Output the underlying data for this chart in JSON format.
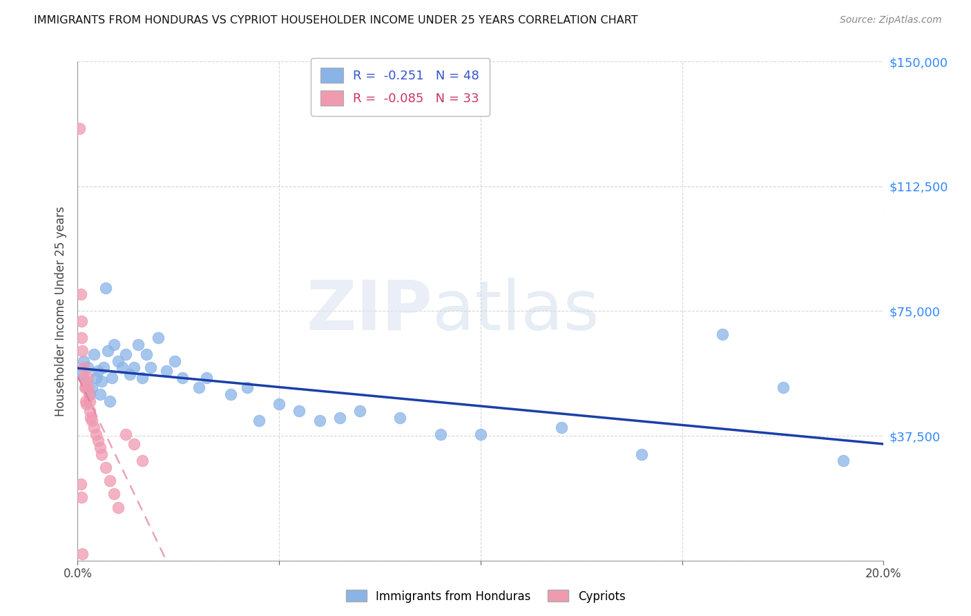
{
  "title": "IMMIGRANTS FROM HONDURAS VS CYPRIOT HOUSEHOLDER INCOME UNDER 25 YEARS CORRELATION CHART",
  "source": "Source: ZipAtlas.com",
  "ylabel": "Householder Income Under 25 years",
  "xlim": [
    0.0,
    0.2
  ],
  "ylim": [
    0,
    150000
  ],
  "yticks": [
    0,
    37500,
    75000,
    112500,
    150000
  ],
  "ytick_labels": [
    "",
    "$37,500",
    "$75,000",
    "$112,500",
    "$150,000"
  ],
  "xticks": [
    0.0,
    0.05,
    0.1,
    0.15,
    0.2
  ],
  "xtick_labels": [
    "0.0%",
    "",
    "",
    "",
    "20.0%"
  ],
  "legend_labels_bottom": [
    "Immigrants from Honduras",
    "Cypriots"
  ],
  "blue_color": "#8ab4e8",
  "pink_color": "#f09ab0",
  "blue_line_color": "#1a3fa8",
  "pink_line_color": "#e07090",
  "grid_color": "#cccccc",
  "blue_R": -0.251,
  "blue_N": 48,
  "pink_R": -0.085,
  "pink_N": 33,
  "blue_scatter_x": [
    0.001,
    0.0015,
    0.002,
    0.0025,
    0.003,
    0.0035,
    0.004,
    0.0045,
    0.005,
    0.0055,
    0.006,
    0.0065,
    0.007,
    0.0075,
    0.008,
    0.0085,
    0.009,
    0.01,
    0.011,
    0.012,
    0.013,
    0.014,
    0.015,
    0.016,
    0.017,
    0.018,
    0.02,
    0.022,
    0.024,
    0.026,
    0.03,
    0.032,
    0.038,
    0.042,
    0.045,
    0.05,
    0.055,
    0.06,
    0.065,
    0.07,
    0.08,
    0.09,
    0.1,
    0.12,
    0.14,
    0.16,
    0.175,
    0.19
  ],
  "blue_scatter_y": [
    56000,
    60000,
    54000,
    58000,
    50000,
    52000,
    62000,
    55000,
    57000,
    50000,
    54000,
    58000,
    82000,
    63000,
    48000,
    55000,
    65000,
    60000,
    58000,
    62000,
    56000,
    58000,
    65000,
    55000,
    62000,
    58000,
    67000,
    57000,
    60000,
    55000,
    52000,
    55000,
    50000,
    52000,
    42000,
    47000,
    45000,
    42000,
    43000,
    45000,
    43000,
    38000,
    38000,
    40000,
    32000,
    68000,
    52000,
    30000
  ],
  "pink_scatter_x": [
    0.0005,
    0.0008,
    0.001,
    0.001,
    0.0012,
    0.0015,
    0.0015,
    0.0018,
    0.002,
    0.002,
    0.0022,
    0.0025,
    0.0025,
    0.0028,
    0.003,
    0.003,
    0.0032,
    0.0035,
    0.004,
    0.0045,
    0.005,
    0.0055,
    0.006,
    0.007,
    0.008,
    0.009,
    0.01,
    0.012,
    0.014,
    0.016,
    0.0008,
    0.001,
    0.0012
  ],
  "pink_scatter_y": [
    130000,
    80000,
    72000,
    67000,
    63000,
    58000,
    55000,
    52000,
    52000,
    48000,
    47000,
    55000,
    52000,
    50000,
    48000,
    45000,
    43000,
    42000,
    40000,
    38000,
    36000,
    34000,
    32000,
    28000,
    24000,
    20000,
    16000,
    38000,
    35000,
    30000,
    23000,
    19000,
    2000
  ]
}
